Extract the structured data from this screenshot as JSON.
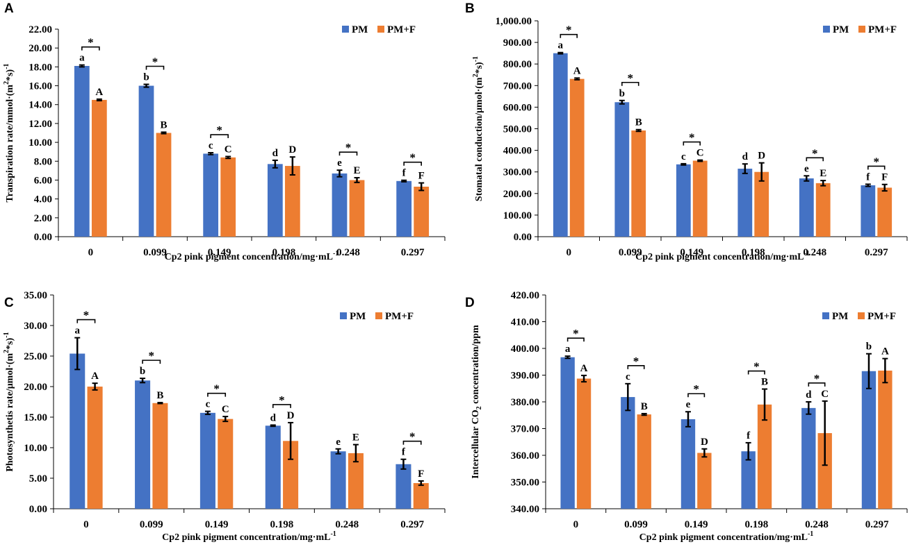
{
  "colors": {
    "pm": "#4472C4",
    "pmf": "#ED7D31",
    "axis": "#000000"
  },
  "chart_data": [
    {
      "type": "bar",
      "panel": "A",
      "categories": [
        "0",
        "0.099",
        "0.149",
        "0.198",
        "0.248",
        "0.297"
      ],
      "ylim": [
        0,
        22
      ],
      "ytick_step": 2,
      "yticks": [
        "0.00",
        "2.00",
        "4.00",
        "6.00",
        "8.00",
        "10.00",
        "12.00",
        "14.00",
        "16.00",
        "18.00",
        "20.00",
        "22.00"
      ],
      "ylabel": {
        "main": "Transpiration rate/mmol·(m",
        "sup1": "2",
        "mid": "*s)",
        "sup2": "-1"
      },
      "xlabel": {
        "main": "Cp2 pink pigment concentration/mg·mL",
        "sup": "-1"
      },
      "series": [
        {
          "name": "PM",
          "values": [
            18.1,
            16.0,
            8.8,
            7.7,
            6.7,
            5.9
          ],
          "errors": [
            0.1,
            0.15,
            0.1,
            0.4,
            0.35,
            0.08
          ],
          "letters": [
            "a",
            "b",
            "c",
            "d",
            "e",
            "f"
          ]
        },
        {
          "name": "PM+F",
          "values": [
            14.5,
            11.0,
            8.4,
            7.5,
            6.0,
            5.3
          ],
          "errors": [
            0.08,
            0.08,
            0.1,
            0.95,
            0.25,
            0.4
          ],
          "letters": [
            "A",
            "B",
            "C",
            "D",
            "E",
            "F"
          ]
        }
      ],
      "significance": [
        "*",
        "*",
        "*",
        "",
        "*",
        "*"
      ]
    },
    {
      "type": "bar",
      "panel": "B",
      "categories": [
        "0",
        "0.099",
        "0.149",
        "0.198",
        "0.248",
        "0.297"
      ],
      "ylim": [
        0,
        1000
      ],
      "ytick_step": 100,
      "yticks": [
        "0.00",
        "100.00",
        "200.00",
        "300.00",
        "400.00",
        "500.00",
        "600.00",
        "700.00",
        "800.00",
        "900.00",
        "1,000.00"
      ],
      "ylabel": {
        "main": "Stomatal conduction/μmol·(m",
        "sup1": "2",
        "mid": "*s)",
        "sup2": "-1"
      },
      "xlabel": {
        "main": "Cp2 pink pigment concentration/mg·mL",
        "sup": "-1"
      },
      "series": [
        {
          "name": "PM",
          "values": [
            850,
            623,
            335,
            315,
            270,
            238
          ],
          "errors": [
            3,
            8,
            3,
            22,
            12,
            5
          ],
          "letters": [
            "a",
            "b",
            "c",
            "d",
            "e",
            "f"
          ]
        },
        {
          "name": "PM+F",
          "values": [
            731,
            492,
            352,
            300,
            248,
            227
          ],
          "errors": [
            4,
            4,
            3,
            42,
            12,
            15
          ],
          "letters": [
            "A",
            "B",
            "C",
            "D",
            "E",
            "F"
          ]
        }
      ],
      "significance": [
        "*",
        "*",
        "*",
        "",
        "*",
        "*"
      ]
    },
    {
      "type": "bar",
      "panel": "C",
      "categories": [
        "0",
        "0.099",
        "0.149",
        "0.198",
        "0.248",
        "0.297"
      ],
      "ylim": [
        0,
        35
      ],
      "ytick_step": 5,
      "yticks": [
        "0.00",
        "5.00",
        "10.00",
        "15.00",
        "20.00",
        "25.00",
        "30.00",
        "35.00"
      ],
      "ylabel": {
        "main": "Photosynthetis rate/μmol·(m",
        "sup1": "2",
        "mid": "*s)",
        "sup2": "-1"
      },
      "xlabel": {
        "main": "Cp2 pink pigment concentration/mg·mL",
        "sup": "-1"
      },
      "series": [
        {
          "name": "PM",
          "values": [
            25.4,
            21.0,
            15.7,
            13.6,
            9.4,
            7.3
          ],
          "errors": [
            2.6,
            0.35,
            0.25,
            0.1,
            0.4,
            0.8
          ],
          "letters": [
            "a",
            "b",
            "c",
            "d",
            "e",
            "f"
          ]
        },
        {
          "name": "PM+F",
          "values": [
            20.0,
            17.3,
            14.7,
            11.1,
            9.1,
            4.2
          ],
          "errors": [
            0.55,
            0.08,
            0.4,
            3.0,
            1.4,
            0.35
          ],
          "letters": [
            "A",
            "B",
            "C",
            "D",
            "E",
            "F"
          ]
        }
      ],
      "significance": [
        "*",
        "*",
        "*",
        "*",
        "",
        "*"
      ]
    },
    {
      "type": "bar",
      "panel": "D",
      "categories": [
        "0",
        "0.099",
        "0.149",
        "0.198",
        "0.248",
        "0.297"
      ],
      "ylim": [
        340,
        420
      ],
      "ytick_step": 10,
      "yticks": [
        "340.00",
        "350.00",
        "360.00",
        "370.00",
        "380.00",
        "390.00",
        "400.00",
        "410.00",
        "420.00"
      ],
      "ylabel": {
        "main": "Intercellular CO",
        "sub": "2",
        "rest": " concentration/ppm"
      },
      "xlabel": {
        "main": "Cp2 pink pigment concentration/mg·mL",
        "sup": "-1"
      },
      "series": [
        {
          "name": "PM",
          "values": [
            396.7,
            381.8,
            373.5,
            361.5,
            377.7,
            391.5
          ],
          "errors": [
            0.4,
            5.0,
            2.8,
            3.2,
            2.3,
            6.5
          ],
          "letters": [
            "a",
            "c",
            "e",
            "f",
            "d",
            "b"
          ]
        },
        {
          "name": "PM+F",
          "values": [
            388.7,
            375.3,
            360.9,
            379.0,
            368.3,
            391.7
          ],
          "errors": [
            1.2,
            0.3,
            1.5,
            5.8,
            12.0,
            4.5
          ],
          "letters": [
            "A",
            "B",
            "D",
            "B",
            "C",
            "A"
          ]
        }
      ],
      "significance": [
        "*",
        "*",
        "*",
        "*",
        "*",
        ""
      ]
    }
  ]
}
